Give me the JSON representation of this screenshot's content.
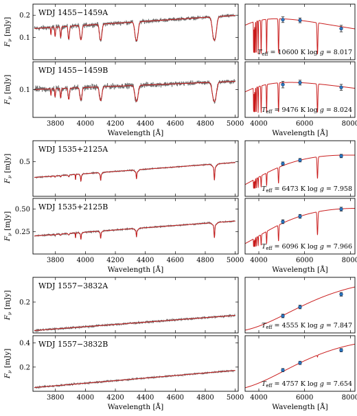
{
  "x_spec_label": "Wavelength [Å]",
  "x_sed_label": "Wavelength [Å]",
  "y_label": "F_ν [mJy]",
  "x_spec_ticks": [
    3800,
    4000,
    4200,
    4400,
    4600,
    4800,
    5000
  ],
  "x_sed_ticks": [
    4000,
    6000,
    8000
  ],
  "chart_data": [
    {
      "type": "line",
      "id": "1455A",
      "title": "WDJ 1455−1459A",
      "panel": "spectrum",
      "xlim": [
        3650,
        5020
      ],
      "ylim": [
        0.0,
        0.25
      ],
      "yticks": [
        "0.1",
        "0.2"
      ],
      "level": 0.14,
      "slope": 0.06,
      "line_depth": 1.0,
      "noise": 0.009
    },
    {
      "type": "scatter",
      "id": "1455A-sed",
      "panel": "sed",
      "xlim": [
        3400,
        8200
      ],
      "ylim": [
        0.0,
        0.25
      ],
      "teff": "10600",
      "logg": "8.017",
      "points": [
        [
          5050,
          0.18
        ],
        [
          5800,
          0.177
        ],
        [
          7600,
          0.14
        ]
      ],
      "errors": [
        0.008,
        0.006,
        0.01
      ]
    },
    {
      "type": "line",
      "id": "1455B",
      "title": "WDJ 1455−1459B",
      "panel": "spectrum",
      "xlim": [
        3650,
        5020
      ],
      "ylim": [
        0.0,
        0.2
      ],
      "yticks": [
        "0.1"
      ],
      "level": 0.1,
      "slope": 0.03,
      "line_depth": 1.0,
      "noise": 0.009
    },
    {
      "type": "scatter",
      "id": "1455B-sed",
      "panel": "sed",
      "xlim": [
        3400,
        8200
      ],
      "ylim": [
        0.0,
        0.2
      ],
      "teff": "9476",
      "logg": "8.024",
      "points": [
        [
          5050,
          0.118
        ],
        [
          5800,
          0.125
        ],
        [
          7600,
          0.108
        ]
      ],
      "errors": [
        0.008,
        0.005,
        0.007
      ]
    },
    {
      "type": "line",
      "id": "1535A",
      "title": "WDJ 1535+2125A",
      "panel": "spectrum",
      "xlim": [
        3650,
        5020
      ],
      "ylim": [
        0.0,
        0.8
      ],
      "yticks": [
        "0.5"
      ],
      "level": 0.27,
      "slope": 0.22,
      "line_depth": 0.2,
      "noise": 0.008
    },
    {
      "type": "scatter",
      "id": "1535A-sed",
      "panel": "sed",
      "xlim": [
        3400,
        8200
      ],
      "ylim": [
        0.0,
        0.8
      ],
      "teff": "6473",
      "logg": "7.958",
      "points": [
        [
          5050,
          0.47
        ],
        [
          5800,
          0.52
        ],
        [
          7600,
          0.58
        ]
      ],
      "errors": [
        0.01,
        0.01,
        0.01
      ]
    },
    {
      "type": "line",
      "id": "1535B",
      "title": "WDJ 1535+2125B",
      "panel": "spectrum",
      "xlim": [
        3650,
        5020
      ],
      "ylim": [
        0.0,
        0.62
      ],
      "yticks": [
        "0.25",
        "0.50"
      ],
      "level": 0.2,
      "slope": 0.17,
      "line_depth": 0.18,
      "noise": 0.008
    },
    {
      "type": "scatter",
      "id": "1535B-sed",
      "panel": "sed",
      "xlim": [
        3400,
        8200
      ],
      "ylim": [
        0.0,
        0.62
      ],
      "teff": "6096",
      "logg": "7.966",
      "points": [
        [
          5050,
          0.36
        ],
        [
          5800,
          0.42
        ],
        [
          7600,
          0.5
        ]
      ],
      "errors": [
        0.01,
        0.01,
        0.01
      ]
    },
    {
      "type": "line",
      "id": "1557A",
      "title": "WDJ 1557−3832A",
      "panel": "spectrum",
      "xlim": [
        3650,
        5020
      ],
      "ylim": [
        0.0,
        0.36
      ],
      "yticks": [
        "0.2"
      ],
      "level": 0.015,
      "slope": 0.1,
      "line_depth": 0.0,
      "noise": 0.007
    },
    {
      "type": "scatter",
      "id": "1557A-sed",
      "panel": "sed",
      "xlim": [
        3400,
        8200
      ],
      "ylim": [
        0.0,
        0.36
      ],
      "teff": "4555",
      "logg": "7.847",
      "points": [
        [
          5050,
          0.11
        ],
        [
          5800,
          0.168
        ],
        [
          7600,
          0.25
        ]
      ],
      "errors": [
        0.005,
        0.005,
        0.005
      ]
    },
    {
      "type": "line",
      "id": "1557B",
      "title": "WDJ 1557−3832B",
      "panel": "spectrum",
      "xlim": [
        3650,
        5020
      ],
      "ylim": [
        0.0,
        0.46
      ],
      "yticks": [
        "0.2",
        "0.4"
      ],
      "level": 0.03,
      "slope": 0.145,
      "line_depth": 0.0,
      "noise": 0.007
    },
    {
      "type": "scatter",
      "id": "1557B-sed",
      "panel": "sed",
      "xlim": [
        3400,
        8200
      ],
      "ylim": [
        0.0,
        0.46
      ],
      "teff": "4757",
      "logg": "7.654",
      "points": [
        [
          5050,
          0.175
        ],
        [
          5800,
          0.235
        ],
        [
          7600,
          0.34
        ]
      ],
      "errors": [
        0.005,
        0.005,
        0.005
      ]
    }
  ]
}
